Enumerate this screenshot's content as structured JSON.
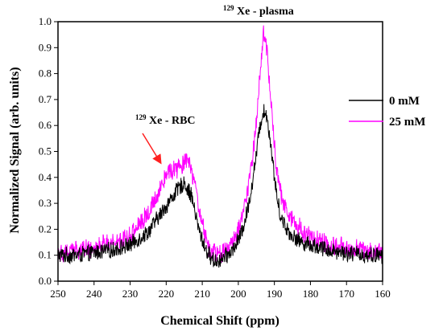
{
  "chart_data": {
    "type": "line",
    "title": "",
    "xlabel": "Chemical Shift (ppm)",
    "ylabel": "Normalized Signal (arb. units)",
    "xlim": [
      250,
      160
    ],
    "ylim": [
      0.0,
      1.0
    ],
    "x_reversed": true,
    "x_ticks": [
      250,
      240,
      230,
      220,
      210,
      200,
      190,
      180,
      170,
      160
    ],
    "y_ticks": [
      0.0,
      0.1,
      0.2,
      0.3,
      0.4,
      0.5,
      0.6,
      0.7,
      0.8,
      0.9,
      1.0
    ],
    "x_tick_labels": [
      "250",
      "240",
      "230",
      "220",
      "210",
      "200",
      "190",
      "180",
      "170",
      "160"
    ],
    "y_tick_labels": [
      "0.0",
      "0.1",
      "0.2",
      "0.3",
      "0.4",
      "0.5",
      "0.6",
      "0.7",
      "0.8",
      "0.9",
      "1.0"
    ],
    "grid": false,
    "legend_position": "right",
    "series": [
      {
        "name": "0 mM",
        "color": "#000000",
        "noise": 0.025,
        "x": [
          250,
          245,
          240,
          235,
          230,
          225,
          222,
          219,
          217,
          215,
          213,
          211,
          209,
          207,
          205,
          203,
          201,
          199,
          197,
          195,
          194,
          193,
          192,
          191,
          190,
          189,
          188,
          186,
          184,
          182,
          180,
          175,
          170,
          165,
          160
        ],
        "y": [
          0.1,
          0.1,
          0.11,
          0.12,
          0.14,
          0.19,
          0.25,
          0.31,
          0.35,
          0.38,
          0.33,
          0.2,
          0.12,
          0.08,
          0.08,
          0.1,
          0.13,
          0.19,
          0.3,
          0.49,
          0.6,
          0.66,
          0.63,
          0.53,
          0.4,
          0.3,
          0.24,
          0.19,
          0.16,
          0.15,
          0.14,
          0.12,
          0.11,
          0.1,
          0.1
        ]
      },
      {
        "name": "25 mM",
        "color": "#ff00ff",
        "noise": 0.03,
        "x": [
          250,
          245,
          240,
          235,
          230,
          225,
          222,
          220,
          218,
          216,
          214,
          212,
          210,
          208,
          206,
          204,
          202,
          200,
          198,
          196,
          195,
          194,
          193,
          192,
          191,
          190,
          189,
          188,
          186,
          184,
          182,
          180,
          175,
          170,
          165,
          160
        ],
        "y": [
          0.11,
          0.12,
          0.13,
          0.15,
          0.18,
          0.26,
          0.35,
          0.42,
          0.43,
          0.44,
          0.47,
          0.36,
          0.22,
          0.12,
          0.1,
          0.11,
          0.14,
          0.2,
          0.3,
          0.48,
          0.62,
          0.8,
          0.97,
          0.88,
          0.7,
          0.52,
          0.4,
          0.32,
          0.26,
          0.22,
          0.19,
          0.17,
          0.14,
          0.13,
          0.12,
          0.11
        ]
      }
    ],
    "annotations": [
      {
        "sup": "129",
        "text": "Xe - plasma"
      },
      {
        "sup": "129",
        "text": "Xe - RBC",
        "arrow": true,
        "arrow_color": "#ff2020"
      }
    ]
  }
}
